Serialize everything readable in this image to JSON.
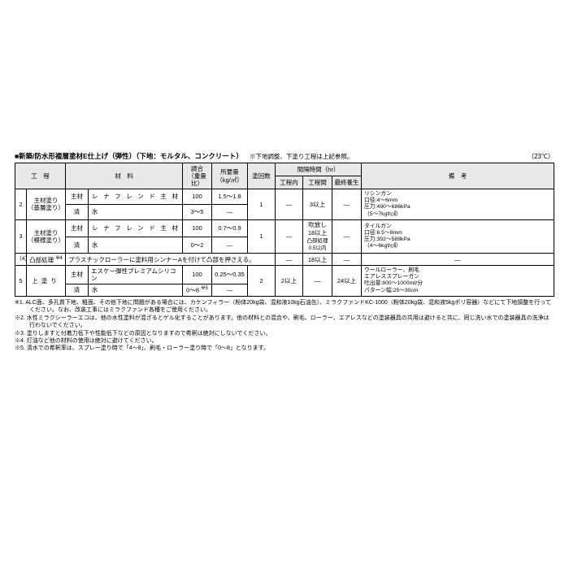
{
  "header": {
    "bullet": "■",
    "title": "新築/防水形複層塗材E仕上げ（弾性）（下地：モルタル、コンクリート）",
    "sub_note": "※下地調整、下塗り工程は上記参照。",
    "temp": "（23℃）"
  },
  "columns": {
    "process": "工　程",
    "material": "材　料",
    "ratio": "調合\n（重量比）",
    "required": "所要量\n（kg/㎡）",
    "count": "塗回数",
    "interval": "間隔時間（hr）",
    "t_in": "工程内",
    "t_between": "工程間",
    "t_final": "最終養生",
    "note": "備　考"
  },
  "rows": {
    "r2": {
      "num": "2",
      "proc": "主材塗り\n（基層塗り）",
      "mat1_label": "主材",
      "mat1_name": "レナフレンド主材",
      "mat1_ratio": "100",
      "mat1_req": "1.5～1.8",
      "mat2_label": "清",
      "mat2_name": "水",
      "mat2_ratio": "3～5",
      "mat2_req": "—",
      "count": "1",
      "t_in": "—",
      "t_between": "3以上",
      "t_final": "—",
      "note": "リシンガン\n口径:4～6mm\n圧力:490～686kPa\n（5～7kgf/㎠）"
    },
    "r3": {
      "num": "3",
      "proc": "主材塗り\n（模様塗り）",
      "mat1_label": "主材",
      "mat1_name": "レナフレンド主材",
      "mat1_ratio": "100",
      "mat1_req": "0.7～0.9",
      "mat2_label": "清",
      "mat2_name": "水",
      "mat2_ratio": "0～2",
      "mat2_req": "—",
      "count": "1",
      "t_in": "—",
      "t_between_main": "吹放し\n18以上",
      "t_between_sub": "凸部処理\n0.5以内",
      "t_final": "—",
      "note": "タイルガン\n口径:6.5～8mm\n圧力:392～588kPa\n（4～6kgf/㎠）"
    },
    "r4": {
      "num": "（4）",
      "proc": "凸部処理",
      "proc_sup": "※4",
      "desc": "プラスチックローラーに塗料用シンナーAを付けて凸部を押さえる。",
      "t_in": "—",
      "t_between": "18以上",
      "t_final": "—",
      "note": "—"
    },
    "r5": {
      "num": "5",
      "proc": "上塗り",
      "mat1_label": "主材",
      "mat1_name": "エスケー弾性プレミアムシリコン",
      "mat1_ratio": "100",
      "mat1_req": "0.25～0.35",
      "mat2_label": "清",
      "mat2_name": "水",
      "mat2_ratio": "0～8",
      "mat2_ratio_sup": "※5",
      "mat2_req": "—",
      "count": "2",
      "t_in": "2以上",
      "t_between": "—",
      "t_final": "24以上",
      "note": "ウールローラー、刷毛\nエアレススプレーガン\n吐出量:800～1000mℓ/分\nパターン幅:25～30cm"
    }
  },
  "footnotes": {
    "n1": "※1. ALC面、多孔質下地、粗面、その他下地に問題がある場合には、カケンフィラー（粉体20kg袋、混和液10kg石油缶）、ミラクファンドKC-1000（粉体20kg袋、混和液5kgポリ容器）などにて下地調整を行ってください。なお、改装工事にはミラクファンド各種をご使用ください。",
    "n2": "※2. 水性ミラクシーラーエコは、他の水性塗料が混ざるとゲル化することがあります。他の材料との混合や、刷毛、ローラー、エアレスなどの塗装器具の共用は避けると共に、同じ洗い水での塗装器具の洗浄は行わないでください。",
    "n3": "※3. 塗りしますと付着力低下や性能低下などの原因となりますので希釈は絶対にしないでください。",
    "n4": "※4. 灯油など他の材料の使用は絶対に避けてください。",
    "n5": "※5. 清水での希釈率は、スプレー塗り時で「4～8」、刷毛・ローラー塗り時で「0～8」となります。"
  }
}
